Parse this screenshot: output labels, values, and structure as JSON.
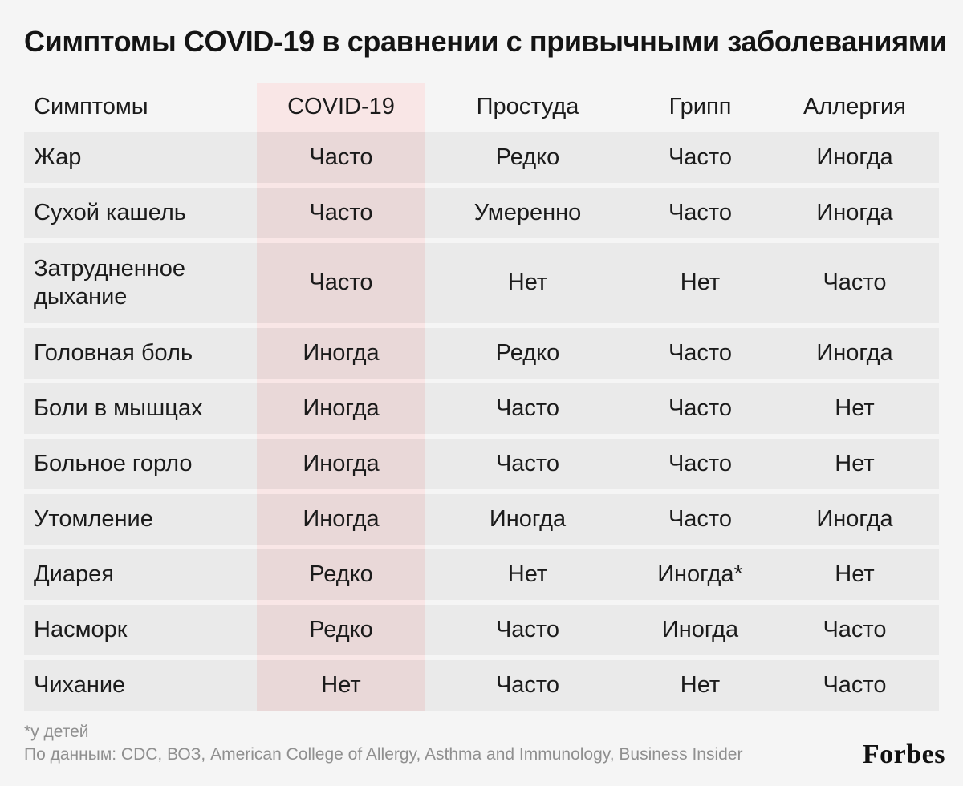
{
  "chart_data": {
    "type": "table",
    "title": "Симптомы COVID-19 в сравнении с привычными заболеваниями",
    "columns": [
      "Симптомы",
      "COVID-19",
      "Простуда",
      "Грипп",
      "Аллергия"
    ],
    "highlight_column": "COVID-19",
    "rows": [
      [
        "Жар",
        "Часто",
        "Редко",
        "Часто",
        "Иногда"
      ],
      [
        "Сухой кашель",
        "Часто",
        "Умеренно",
        "Часто",
        "Иногда"
      ],
      [
        "Затрудненное дыхание",
        "Часто",
        "Нет",
        "Нет",
        "Часто"
      ],
      [
        "Головная боль",
        "Иногда",
        "Редко",
        "Часто",
        "Иногда"
      ],
      [
        "Боли в мышцах",
        "Иногда",
        "Часто",
        "Часто",
        "Нет"
      ],
      [
        "Больное горло",
        "Иногда",
        "Часто",
        "Часто",
        "Нет"
      ],
      [
        "Утомление",
        "Иногда",
        "Иногда",
        "Часто",
        "Иногда"
      ],
      [
        "Диарея",
        "Редко",
        "Нет",
        "Иногда*",
        "Нет"
      ],
      [
        "Насморк",
        "Редко",
        "Часто",
        "Иногда",
        "Часто"
      ],
      [
        "Чихание",
        "Нет",
        "Часто",
        "Нет",
        "Часто"
      ]
    ]
  },
  "footer": {
    "note": "*у детей",
    "source": "По данным: CDC, ВОЗ, American College of Allergy, Asthma and Immunology, Business Insider",
    "brand": "Forbes"
  },
  "colors": {
    "background": "#f5f5f5",
    "row_gray": "#eaeaea",
    "covid_band_light": "#f9e6e6",
    "covid_cell_dark": "#e9d8d8",
    "text": "#1a1a1a",
    "muted_text": "#8f8f8f"
  }
}
